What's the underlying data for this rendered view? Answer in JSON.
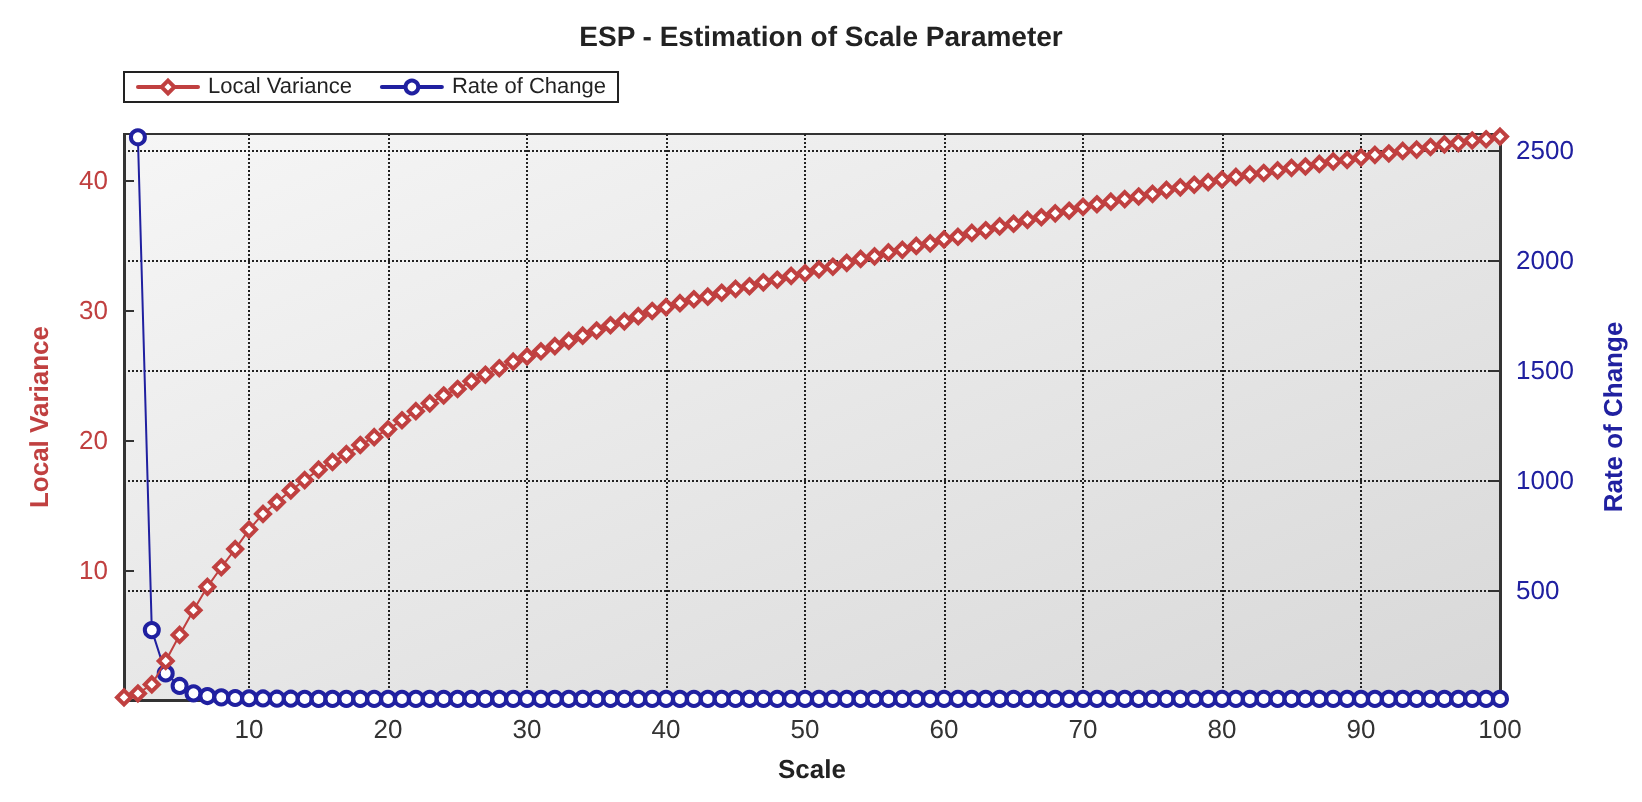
{
  "chart_data": {
    "type": "line",
    "title": "ESP - Estimation of Scale Parameter",
    "xlabel": "Scale",
    "ylabel": "Local Variance",
    "y2label": "Rate of Change",
    "x": [
      1,
      2,
      3,
      4,
      5,
      6,
      7,
      8,
      9,
      10,
      11,
      12,
      13,
      14,
      15,
      16,
      17,
      18,
      19,
      20,
      21,
      22,
      23,
      24,
      25,
      26,
      27,
      28,
      29,
      30,
      31,
      32,
      33,
      34,
      35,
      36,
      37,
      38,
      39,
      40,
      41,
      42,
      43,
      44,
      45,
      46,
      47,
      48,
      49,
      50,
      51,
      52,
      53,
      54,
      55,
      56,
      57,
      58,
      59,
      60,
      61,
      62,
      63,
      64,
      65,
      66,
      67,
      68,
      69,
      70,
      71,
      72,
      73,
      74,
      75,
      76,
      77,
      78,
      79,
      80,
      81,
      82,
      83,
      84,
      85,
      86,
      87,
      88,
      89,
      90,
      91,
      92,
      93,
      94,
      95,
      96,
      97,
      98,
      99,
      100
    ],
    "series": [
      {
        "name": "Local Variance",
        "color": "#c04040",
        "marker": "diamond",
        "values": [
          0.2,
          0.5,
          1.2,
          3.0,
          5.0,
          6.9,
          8.7,
          10.2,
          11.6,
          13.1,
          14.3,
          15.2,
          16.1,
          16.9,
          17.7,
          18.3,
          18.9,
          19.6,
          20.2,
          20.8,
          21.5,
          22.2,
          22.8,
          23.4,
          23.9,
          24.5,
          25.0,
          25.5,
          26.0,
          26.4,
          26.8,
          27.2,
          27.6,
          28.0,
          28.4,
          28.8,
          29.1,
          29.5,
          29.9,
          30.2,
          30.5,
          30.8,
          31.0,
          31.3,
          31.6,
          31.8,
          32.1,
          32.3,
          32.6,
          32.8,
          33.1,
          33.3,
          33.6,
          33.9,
          34.1,
          34.4,
          34.6,
          34.9,
          35.1,
          35.4,
          35.6,
          35.9,
          36.1,
          36.4,
          36.6,
          36.9,
          37.1,
          37.4,
          37.6,
          37.9,
          38.1,
          38.3,
          38.5,
          38.7,
          38.9,
          39.2,
          39.4,
          39.6,
          39.8,
          40.0,
          40.2,
          40.4,
          40.5,
          40.7,
          40.9,
          41.0,
          41.2,
          41.4,
          41.5,
          41.7,
          41.9,
          42.0,
          42.2,
          42.3,
          42.5,
          42.7,
          42.8,
          43.0,
          43.1,
          43.3
        ]
      },
      {
        "name": "Rate of Change",
        "color": "#2020a0",
        "marker": "circle",
        "axis": "y2",
        "x": [
          2,
          3,
          4,
          5,
          6,
          7,
          8,
          9,
          10,
          11,
          12,
          13,
          14,
          15,
          16,
          17,
          18,
          19,
          20,
          21,
          22,
          23,
          24,
          25,
          26,
          27,
          28,
          29,
          30,
          31,
          32,
          33,
          34,
          35,
          36,
          37,
          38,
          39,
          40,
          41,
          42,
          43,
          44,
          45,
          46,
          47,
          48,
          49,
          50,
          51,
          52,
          53,
          54,
          55,
          56,
          57,
          58,
          59,
          60,
          61,
          62,
          63,
          64,
          65,
          66,
          67,
          68,
          69,
          70,
          71,
          72,
          73,
          74,
          75,
          76,
          77,
          78,
          79,
          80,
          81,
          82,
          83,
          84,
          85,
          86,
          87,
          88,
          89,
          90,
          91,
          92,
          93,
          94,
          95,
          96,
          97,
          98,
          99,
          100
        ],
        "values": [
          2560,
          318,
          121,
          64,
          30,
          18,
          12,
          9,
          8,
          7,
          6,
          6,
          5,
          5,
          5,
          5,
          5,
          5,
          5,
          5,
          5,
          5,
          5,
          5,
          5,
          5,
          5,
          5,
          5,
          5,
          5,
          5,
          5,
          5,
          5,
          5,
          5,
          5,
          5,
          5,
          5,
          5,
          5,
          5,
          5,
          5,
          5,
          5,
          5,
          5,
          5,
          5,
          5,
          5,
          5,
          5,
          5,
          5,
          5,
          5,
          5,
          5,
          5,
          5,
          5,
          5,
          5,
          5,
          5,
          5,
          5,
          5,
          5,
          5,
          5,
          5,
          5,
          5,
          5,
          5,
          5,
          5,
          5,
          5,
          5,
          5,
          5,
          5,
          5,
          5,
          5,
          5,
          5,
          5,
          5,
          5,
          5,
          5,
          5
        ]
      }
    ],
    "xlim": [
      1,
      100
    ],
    "xticks": [
      10,
      20,
      30,
      40,
      50,
      60,
      70,
      80,
      90,
      100
    ],
    "ylim": [
      0,
      43.5
    ],
    "yticks": [
      10,
      20,
      30,
      40
    ],
    "y2lim": [
      0,
      2575
    ],
    "y2ticks": [
      500,
      1000,
      1500,
      2000,
      2500
    ],
    "grid": true,
    "legend": "top left",
    "line_style": "solid"
  }
}
